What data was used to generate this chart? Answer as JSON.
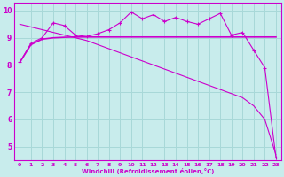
{
  "x": [
    0,
    1,
    2,
    3,
    4,
    5,
    6,
    7,
    8,
    9,
    10,
    11,
    12,
    13,
    14,
    15,
    16,
    17,
    18,
    19,
    20,
    21,
    22,
    23
  ],
  "line1": [
    8.1,
    8.8,
    9.0,
    9.55,
    9.45,
    9.1,
    9.05,
    9.15,
    9.3,
    9.55,
    9.95,
    9.7,
    9.85,
    9.6,
    9.75,
    9.6,
    9.5,
    9.7,
    9.9,
    9.1,
    9.2,
    8.55,
    7.9,
    4.6
  ],
  "line2": [
    8.1,
    8.75,
    8.95,
    9.0,
    9.02,
    9.03,
    9.03,
    9.03,
    9.03,
    9.03,
    9.03,
    9.03,
    9.03,
    9.03,
    9.03,
    9.03,
    9.03,
    9.03,
    9.03,
    9.03,
    9.03,
    9.03,
    9.03,
    9.03
  ],
  "line3": [
    9.5,
    9.4,
    9.3,
    9.2,
    9.1,
    9.0,
    8.9,
    8.75,
    8.6,
    8.45,
    8.3,
    8.15,
    8.0,
    7.85,
    7.7,
    7.55,
    7.4,
    7.25,
    7.1,
    6.95,
    6.8,
    6.5,
    6.0,
    4.7
  ],
  "color": "#cc00cc",
  "bg_color": "#c8ecec",
  "grid_color": "#a8d8d8",
  "xlabel": "Windchill (Refroidissement éolien,°C)",
  "xlim": [
    -0.5,
    23.5
  ],
  "ylim": [
    4.5,
    10.3
  ],
  "yticks": [
    5,
    6,
    7,
    8,
    9,
    10
  ],
  "xticks": [
    0,
    1,
    2,
    3,
    4,
    5,
    6,
    7,
    8,
    9,
    10,
    11,
    12,
    13,
    14,
    15,
    16,
    17,
    18,
    19,
    20,
    21,
    22,
    23
  ],
  "xticklabels": [
    "0",
    "1",
    "2",
    "3",
    "4",
    "5",
    "6",
    "7",
    "8",
    "9",
    "10",
    "11",
    "12",
    "13",
    "14",
    "15",
    "16",
    "17",
    "18",
    "19",
    "20",
    "21",
    "22",
    "23"
  ]
}
